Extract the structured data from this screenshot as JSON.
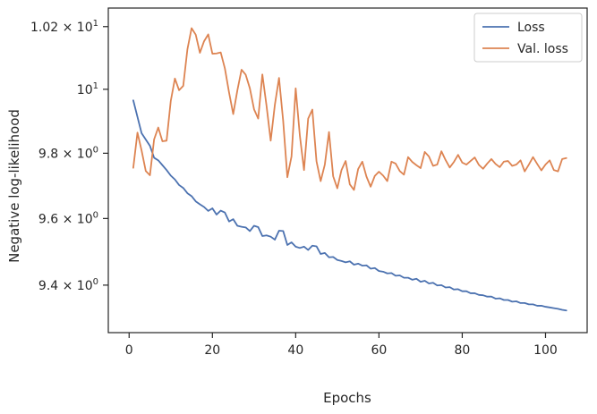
{
  "chart_data": {
    "type": "line",
    "title": "",
    "xlabel": "Epochs",
    "ylabel": "Negative log-likelihood",
    "yscale": "log",
    "xlim": [
      -5,
      110
    ],
    "ylim": [
      9.26,
      10.26
    ],
    "grid": false,
    "legend_position": "top-right",
    "x_ticks": [
      0,
      20,
      40,
      60,
      80,
      100
    ],
    "x_tick_labels": [
      "0",
      "20",
      "40",
      "60",
      "80",
      "100"
    ],
    "y_ticks": [
      9.4,
      9.6,
      9.8,
      10.0,
      10.2
    ],
    "y_tick_labels": [
      {
        "base": "9.4",
        "exp": ""
      },
      {
        "base": "9.6",
        "exp": ""
      },
      {
        "base": "9.8",
        "exp": ""
      },
      {
        "base": "10",
        "exp": "1"
      },
      {
        "base": "1.02",
        "exp": "1"
      }
    ],
    "series": [
      {
        "name": "Loss",
        "color": "#4c72b0",
        "x": [
          1,
          3,
          5,
          6,
          7,
          8,
          9,
          10,
          11,
          12,
          13,
          14,
          15,
          16,
          17,
          18,
          19,
          20,
          21,
          22,
          23,
          24,
          25,
          26,
          27,
          28,
          29,
          30,
          31,
          32,
          33,
          34,
          35,
          36,
          37,
          38,
          39,
          40,
          41,
          42,
          43,
          44,
          45,
          46,
          47,
          48,
          49,
          50,
          51,
          52,
          53,
          54,
          55,
          56,
          57,
          58,
          59,
          60,
          61,
          62,
          63,
          64,
          65,
          66,
          67,
          68,
          69,
          70,
          71,
          72,
          73,
          74,
          75,
          76,
          77,
          78,
          79,
          80,
          81,
          82,
          83,
          84,
          85,
          86,
          87,
          88,
          89,
          90,
          91,
          92,
          93,
          94,
          95,
          96,
          97,
          98,
          99,
          100,
          101,
          102,
          103,
          104,
          105
        ],
        "y": [
          9.965,
          9.862,
          9.823,
          9.786,
          9.778,
          9.763,
          9.748,
          9.731,
          9.719,
          9.702,
          9.693,
          9.677,
          9.668,
          9.652,
          9.643,
          9.635,
          9.623,
          9.631,
          9.612,
          9.624,
          9.618,
          9.591,
          9.598,
          9.578,
          9.575,
          9.573,
          9.562,
          9.578,
          9.574,
          9.547,
          9.549,
          9.545,
          9.536,
          9.563,
          9.562,
          9.52,
          9.528,
          9.515,
          9.511,
          9.515,
          9.505,
          9.518,
          9.516,
          9.493,
          9.496,
          9.483,
          9.484,
          9.475,
          9.472,
          9.468,
          9.471,
          9.461,
          9.464,
          9.458,
          9.459,
          9.449,
          9.451,
          9.442,
          9.44,
          9.435,
          9.436,
          9.428,
          9.429,
          9.422,
          9.422,
          9.416,
          9.419,
          9.41,
          9.413,
          9.405,
          9.407,
          9.399,
          9.4,
          9.393,
          9.394,
          9.387,
          9.388,
          9.382,
          9.382,
          9.376,
          9.376,
          9.371,
          9.37,
          9.366,
          9.366,
          9.36,
          9.361,
          9.356,
          9.356,
          9.351,
          9.352,
          9.347,
          9.347,
          9.343,
          9.343,
          9.339,
          9.339,
          9.336,
          9.334,
          9.332,
          9.33,
          9.327,
          9.325
        ]
      },
      {
        "name": "Val. loss",
        "color": "#dd8452",
        "x": [
          1,
          2,
          3,
          4,
          5,
          6,
          7,
          8,
          9,
          10,
          11,
          12,
          13,
          14,
          15,
          16,
          17,
          18,
          19,
          20,
          21,
          22,
          23,
          24,
          25,
          26,
          27,
          28,
          29,
          30,
          31,
          32,
          33,
          34,
          35,
          36,
          37,
          38,
          39,
          40,
          41,
          42,
          43,
          44,
          45,
          46,
          47,
          48,
          49,
          50,
          51,
          52,
          53,
          54,
          55,
          56,
          57,
          58,
          59,
          60,
          61,
          62,
          63,
          64,
          65,
          66,
          67,
          68,
          69,
          70,
          71,
          72,
          73,
          74,
          75,
          76,
          77,
          78,
          79,
          80,
          81,
          82,
          83,
          84,
          85,
          86,
          87,
          88,
          89,
          90,
          91,
          92,
          93,
          94,
          95,
          96,
          97,
          98,
          99,
          100,
          101,
          102,
          103,
          104,
          105
        ],
        "y": [
          9.755,
          9.864,
          9.808,
          9.745,
          9.732,
          9.843,
          9.88,
          9.837,
          9.839,
          9.963,
          10.034,
          9.997,
          10.011,
          10.127,
          10.195,
          10.174,
          10.116,
          10.153,
          10.175,
          10.113,
          10.114,
          10.117,
          10.066,
          9.99,
          9.922,
          9.997,
          10.062,
          10.046,
          10.003,
          9.937,
          9.908,
          10.047,
          9.948,
          9.839,
          9.951,
          10.036,
          9.9,
          9.726,
          9.79,
          10.003,
          9.855,
          9.748,
          9.908,
          9.936,
          9.775,
          9.714,
          9.765,
          9.866,
          9.729,
          9.692,
          9.748,
          9.776,
          9.704,
          9.687,
          9.751,
          9.774,
          9.728,
          9.697,
          9.73,
          9.743,
          9.731,
          9.714,
          9.774,
          9.768,
          9.745,
          9.734,
          9.788,
          9.773,
          9.763,
          9.754,
          9.804,
          9.79,
          9.761,
          9.765,
          9.806,
          9.779,
          9.756,
          9.773,
          9.795,
          9.771,
          9.765,
          9.776,
          9.787,
          9.764,
          9.752,
          9.768,
          9.782,
          9.767,
          9.757,
          9.774,
          9.776,
          9.761,
          9.765,
          9.778,
          9.744,
          9.765,
          9.788,
          9.767,
          9.747,
          9.765,
          9.778,
          9.748,
          9.744,
          9.782,
          9.785
        ]
      }
    ]
  }
}
